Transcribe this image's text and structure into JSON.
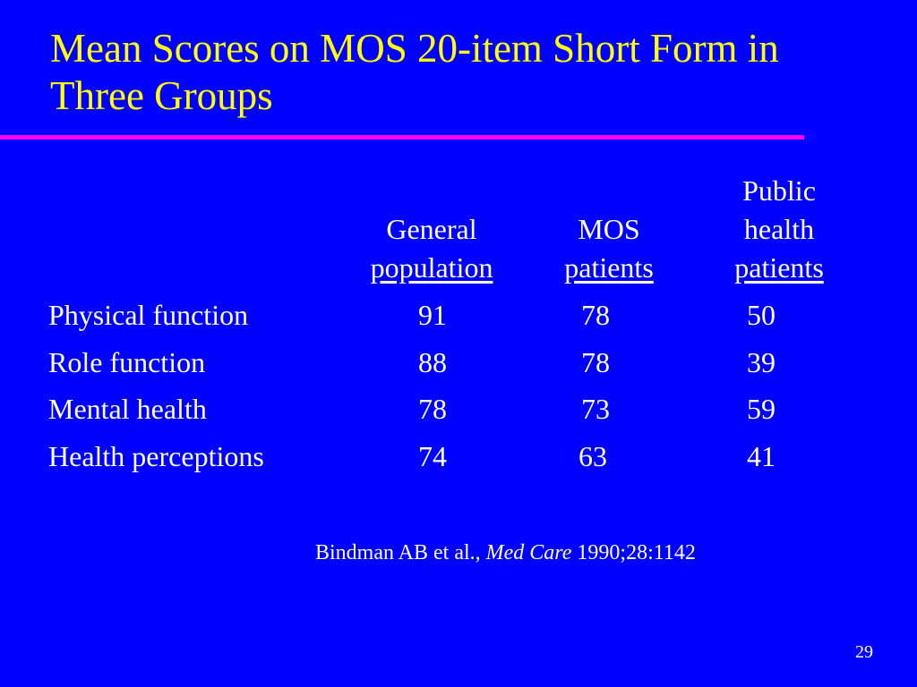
{
  "slide": {
    "title": "Mean Scores on MOS 20-item Short Form in Three Groups",
    "page_number": "29",
    "colors": {
      "background": "#0000FF",
      "title": "#FFFF00",
      "divider": "#FF00FF",
      "text": "#FFFFFF"
    }
  },
  "table": {
    "columns": [
      {
        "line1": "",
        "line2": "General",
        "line3": "population"
      },
      {
        "line1": "",
        "line2": "MOS",
        "line3": "patients"
      },
      {
        "line1": "Public",
        "line2": "health",
        "line3": "patients"
      }
    ],
    "rows": [
      {
        "label": "Physical function",
        "values": [
          "91",
          "78",
          "50"
        ]
      },
      {
        "label": "Role function",
        "values": [
          "88",
          "78",
          "39"
        ]
      },
      {
        "label": "Mental health",
        "values": [
          "78",
          "73",
          "59"
        ]
      },
      {
        "label": "Health perceptions",
        "values": [
          "74",
          "63",
          "41"
        ]
      }
    ]
  },
  "citation": {
    "authors": "Bindman AB et al.,",
    "journal": "Med Care",
    "details": "1990;28:1142"
  }
}
